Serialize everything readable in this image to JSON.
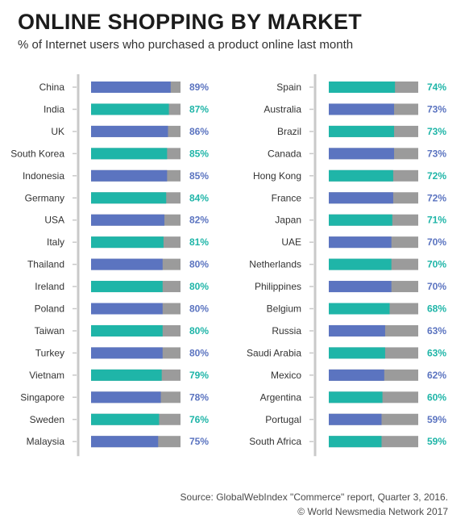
{
  "header": {
    "title": "ONLINE SHOPPING BY MARKET",
    "subtitle": "% of Internet users who purchased a product online last month"
  },
  "footer": {
    "source": "Source: GlobalWebIndex \"Commerce\" report, Quarter 3, 2016.",
    "copyright": "© World Newsmedia Network 2017"
  },
  "colors": {
    "blue": "#5b74c0",
    "teal": "#1fb5a8",
    "grey": "#9b9b9b",
    "axis": "#c9c9c9",
    "label": "#333333"
  },
  "chart_data": [
    {
      "type": "bar",
      "orientation": "horizontal",
      "ylim": [
        0,
        100
      ],
      "categories": [
        "China",
        "India",
        "UK",
        "South Korea",
        "Indonesia",
        "Germany",
        "USA",
        "Italy",
        "Thailand",
        "Ireland",
        "Poland",
        "Taiwan",
        "Turkey",
        "Vietnam",
        "Singapore",
        "Sweden",
        "Malaysia"
      ],
      "values": [
        89,
        87,
        86,
        85,
        85,
        84,
        82,
        81,
        80,
        80,
        80,
        80,
        80,
        79,
        78,
        76,
        75
      ],
      "labels": [
        "89%",
        "87%",
        "86%",
        "85%",
        "85%",
        "84%",
        "82%",
        "81%",
        "80%",
        "80%",
        "80%",
        "80%",
        "80%",
        "79%",
        "78%",
        "76%",
        "75%"
      ],
      "colors": [
        "blue",
        "teal",
        "blue",
        "teal",
        "blue",
        "teal",
        "blue",
        "teal",
        "blue",
        "teal",
        "blue",
        "teal",
        "blue",
        "teal",
        "blue",
        "teal",
        "blue"
      ]
    },
    {
      "type": "bar",
      "orientation": "horizontal",
      "ylim": [
        0,
        100
      ],
      "categories": [
        "Spain",
        "Australia",
        "Brazil",
        "Canada",
        "Hong Kong",
        "France",
        "Japan",
        "UAE",
        "Netherlands",
        "Philippines",
        "Belgium",
        "Russia",
        "Saudi Arabia",
        "Mexico",
        "Argentina",
        "Portugal",
        "South Africa"
      ],
      "values": [
        74,
        73,
        73,
        73,
        72,
        72,
        71,
        70,
        70,
        70,
        68,
        63,
        63,
        62,
        60,
        59,
        59
      ],
      "labels": [
        "74%",
        "73%",
        "73%",
        "73%",
        "72%",
        "72%",
        "71%",
        "70%",
        "70%",
        "70%",
        "68%",
        "63%",
        "63%",
        "62%",
        "60%",
        "59%",
        "59%"
      ],
      "colors": [
        "teal",
        "blue",
        "teal",
        "blue",
        "teal",
        "blue",
        "teal",
        "blue",
        "teal",
        "blue",
        "teal",
        "blue",
        "teal",
        "blue",
        "teal",
        "blue",
        "teal"
      ]
    }
  ]
}
